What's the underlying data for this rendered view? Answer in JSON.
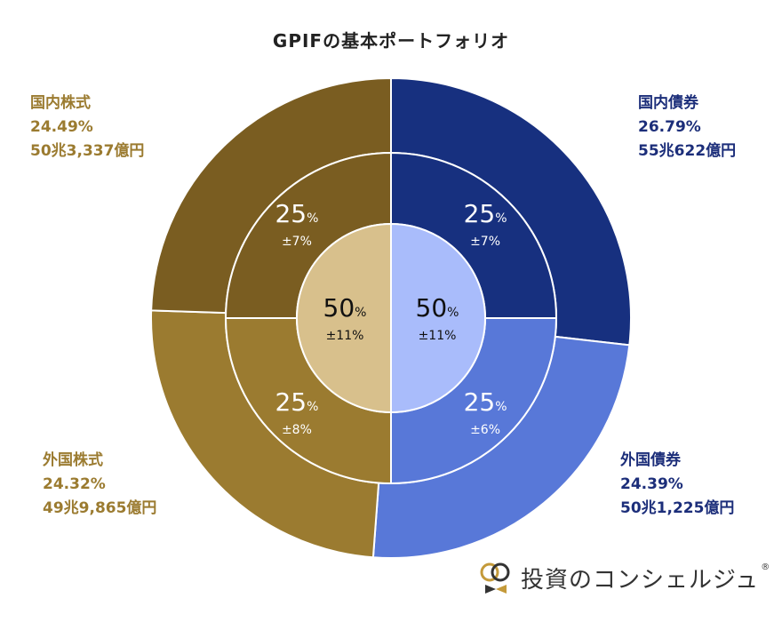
{
  "chart_data": {
    "type": "pie",
    "title": "GPIFの基本ポートフォリオ",
    "outer_ring": [
      {
        "name": "国内債券",
        "percent_label": "26.79%",
        "amount_label": "55兆622億円",
        "value": 26.79,
        "color": "#17307f",
        "text_color": "#1c2e7a"
      },
      {
        "name": "外国債券",
        "percent_label": "24.39%",
        "amount_label": "50兆1,225億円",
        "value": 24.39,
        "color": "#5878d8",
        "text_color": "#1c2e7a"
      },
      {
        "name": "外国株式",
        "percent_label": "24.32%",
        "amount_label": "49兆9,865億円",
        "value": 24.32,
        "color": "#9b7b30",
        "text_color": "#9b7b30"
      },
      {
        "name": "国内株式",
        "percent_label": "24.49%",
        "amount_label": "50兆3,337億円",
        "value": 24.49,
        "color": "#7a5d21",
        "text_color": "#9b7b30"
      }
    ],
    "middle_ring": [
      {
        "value": 25,
        "value_label": "25",
        "unit": "%",
        "range_label": "±7%",
        "color": "#17307f"
      },
      {
        "value": 25,
        "value_label": "25",
        "unit": "%",
        "range_label": "±6%",
        "color": "#5878d8"
      },
      {
        "value": 25,
        "value_label": "25",
        "unit": "%",
        "range_label": "±8%",
        "color": "#9b7b30"
      },
      {
        "value": 25,
        "value_label": "25",
        "unit": "%",
        "range_label": "±7%",
        "color": "#7a5d21"
      }
    ],
    "inner_ring": [
      {
        "value": 50,
        "value_label": "50",
        "unit": "%",
        "range_label": "±11%",
        "color": "#a9bcfb"
      },
      {
        "value": 50,
        "value_label": "50",
        "unit": "%",
        "range_label": "±11%",
        "color": "#d8c08c"
      }
    ]
  },
  "logo": {
    "text": "投資のコンシェルジュ",
    "reg_mark": "®"
  }
}
